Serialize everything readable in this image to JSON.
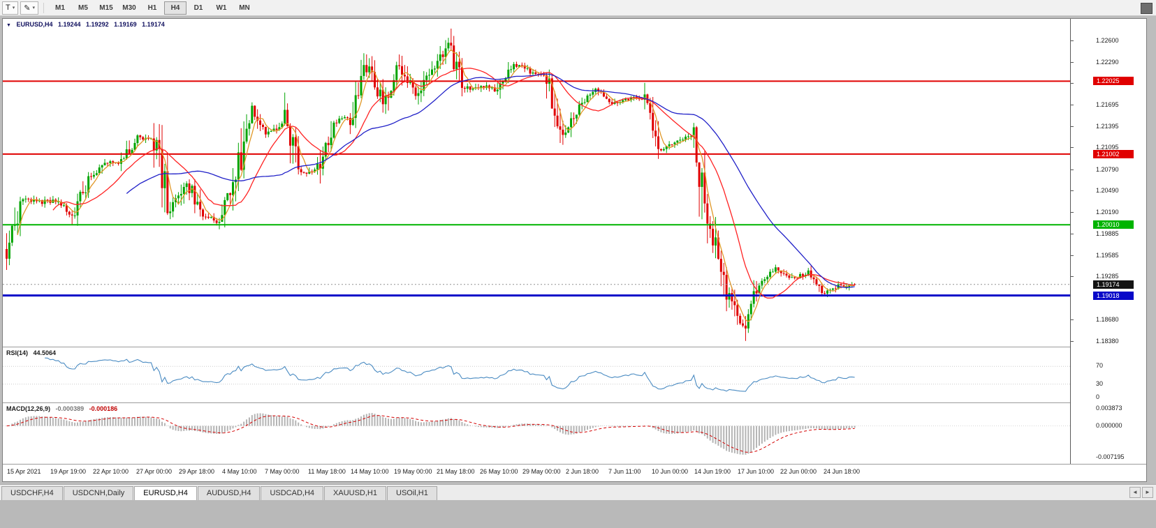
{
  "toolbar": {
    "text_tool_label": "T",
    "timeframes": [
      "M1",
      "M5",
      "M15",
      "M30",
      "H1",
      "H4",
      "D1",
      "W1",
      "MN"
    ],
    "active_timeframe": "H4"
  },
  "icons": {
    "symbol_marker": "▼",
    "caret": "▾",
    "draw_tool": "✎",
    "tab_scroll_left": "◄",
    "tab_scroll_right": "►"
  },
  "chart": {
    "symbol_label": "EURUSD,H4",
    "ohlc": {
      "open": "1.19244",
      "high": "1.19292",
      "low": "1.19169",
      "close": "1.19174"
    }
  },
  "rsi": {
    "name": "RSI(14)",
    "value": "44.5064",
    "line_color": "#4a8bc2",
    "levels": [
      70,
      30
    ],
    "axis": [
      {
        "v": 70,
        "label": "70"
      },
      {
        "v": 30,
        "label": "30"
      },
      {
        "v": 0,
        "label": "0"
      }
    ]
  },
  "macd": {
    "name": "MACD(12,26,9)",
    "value_main": "-0.000389",
    "value_signal": "-0.000186",
    "histogram_color": "#b4b4b4",
    "signal_color": "#d40000",
    "axis": [
      {
        "v": 0.003873,
        "label": "0.003873"
      },
      {
        "v": 0,
        "label": "0.000000"
      },
      {
        "v": -0.007195,
        "label": "-0.007195"
      }
    ]
  },
  "tabs": {
    "items": [
      "USDCHF,H4",
      "USDCNH,Daily",
      "EURUSD,H4",
      "AUDUSD,H4",
      "USDCAD,H4",
      "XAUUSD,H1",
      "USOil,H1"
    ],
    "active": "EURUSD,H4"
  },
  "chart_data": {
    "type": "candlestick",
    "symbol": "EURUSD",
    "timeframe": "H4",
    "title": "EURUSD,H4",
    "price_max": 1.229,
    "price_min": 1.183,
    "y_axis_ticks": [
      "1.22600",
      "1.22290",
      "1.21995",
      "1.21695",
      "1.21395",
      "1.21095",
      "1.20790",
      "1.20490",
      "1.20190",
      "1.19885",
      "1.19585",
      "1.19285",
      "1.18680",
      "1.18380"
    ],
    "time_labels": [
      "15 Apr 2021",
      "19 Apr 19:00",
      "22 Apr 10:00",
      "27 Apr 00:00",
      "29 Apr 18:00",
      "4 May 10:00",
      "7 May 00:00",
      "11 May 18:00",
      "14 May 10:00",
      "19 May 00:00",
      "21 May 18:00",
      "26 May 10:00",
      "29 May 00:00",
      "2 Jun 18:00",
      "7 Jun 11:00",
      "10 Jun 00:00",
      "14 Jun 19:00",
      "17 Jun 10:00",
      "22 Jun 00:00",
      "24 Jun 18:00"
    ],
    "bars_per_day": 6,
    "daily_closes": [
      1.1967,
      1.2038,
      1.2033,
      1.2034,
      1.2015,
      1.2065,
      1.209,
      1.2089,
      1.2125,
      1.2122,
      1.202,
      1.2063,
      1.2014,
      1.2004,
      1.2065,
      1.2166,
      1.2129,
      1.2147,
      1.2073,
      1.2079,
      1.2144,
      1.2154,
      1.2222,
      1.2173,
      1.2228,
      1.218,
      1.2216,
      1.225,
      1.2192,
      1.2195,
      1.219,
      1.2227,
      1.2216,
      1.2211,
      1.2126,
      1.2166,
      1.2189,
      1.2172,
      1.2179,
      1.2174,
      1.2107,
      1.212,
      1.2125,
      1.1994,
      1.1906,
      1.1858,
      1.1919,
      1.194,
      1.1926,
      1.1932,
      1.1905,
      1.19174
    ],
    "levels": [
      {
        "value": 1.22025,
        "label": "1.22025",
        "color": "#e00000",
        "text_color": "#ffffff",
        "width": 2
      },
      {
        "value": 1.21002,
        "label": "1.21002",
        "color": "#e00000",
        "text_color": "#ffffff",
        "width": 2
      },
      {
        "value": 1.2001,
        "label": "1.20010",
        "color": "#00b400",
        "text_color": "#ffffff",
        "width": 2
      },
      {
        "value": 1.19018,
        "label": "1.19018",
        "color": "#0808c8",
        "text_color": "#ffffff",
        "width": 3
      }
    ],
    "current_price": {
      "value": 1.19174,
      "label": "1.19174",
      "bg": "#141414",
      "text_color": "#ffffff"
    },
    "moving_averages": [
      {
        "period": 5,
        "color": "#e09726"
      },
      {
        "period": 18,
        "color": "#ff2222"
      },
      {
        "period": 45,
        "color": "#2020c8"
      }
    ],
    "candle_up_color": "#00a400",
    "candle_down_color": "#e00000"
  }
}
